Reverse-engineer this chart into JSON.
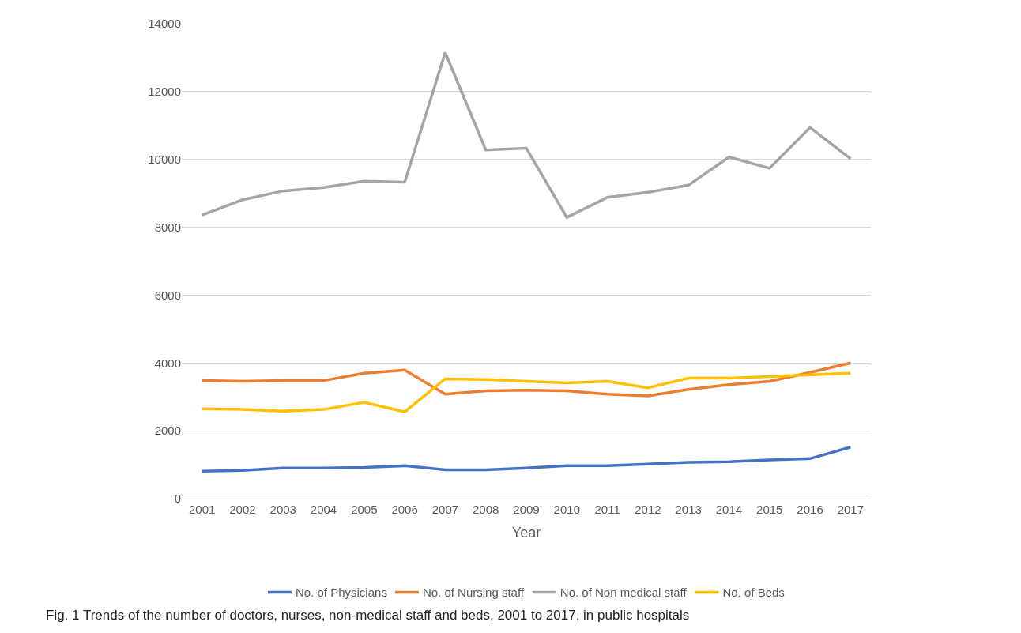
{
  "chart_data": {
    "type": "line",
    "xlabel": "Year",
    "categories": [
      "2001",
      "2002",
      "2003",
      "2004",
      "2005",
      "2006",
      "2007",
      "2008",
      "2009",
      "2010",
      "2011",
      "2012",
      "2013",
      "2014",
      "2015",
      "2016",
      "2017"
    ],
    "series": [
      {
        "name": "No. of Physicians",
        "color": "#4472c4",
        "values": [
          810,
          830,
          900,
          900,
          920,
          970,
          850,
          850,
          900,
          970,
          970,
          1020,
          1070,
          1090,
          1140,
          1180,
          1520
        ]
      },
      {
        "name": "No. of Nursing staff",
        "color": "#ed7d31",
        "values": [
          3480,
          3460,
          3480,
          3480,
          3700,
          3790,
          3080,
          3180,
          3200,
          3180,
          3080,
          3030,
          3220,
          3360,
          3460,
          3720,
          4000
        ]
      },
      {
        "name": "No. of Non medical staff",
        "color": "#a5a5a5",
        "values": [
          8360,
          8810,
          9070,
          9170,
          9360,
          9330,
          13150,
          10280,
          10330,
          8290,
          8880,
          9030,
          9240,
          10070,
          9740,
          10940,
          10020
        ]
      },
      {
        "name": "No. of Beds",
        "color": "#ffc000",
        "values": [
          2650,
          2630,
          2580,
          2630,
          2840,
          2560,
          3530,
          3510,
          3460,
          3410,
          3460,
          3270,
          3550,
          3550,
          3600,
          3650,
          3700
        ]
      }
    ],
    "ylim": [
      0,
      14000
    ],
    "yticks": [
      0,
      2000,
      4000,
      6000,
      8000,
      10000,
      12000,
      14000
    ],
    "grid": "y",
    "legend": "bottom",
    "marker": "none",
    "line_style": "solid",
    "annotations": [
      "Fig. 1 Trends of the number of doctors, nurses, non-medical staff and beds, 2001 to 2017, in public hospitals"
    ]
  }
}
